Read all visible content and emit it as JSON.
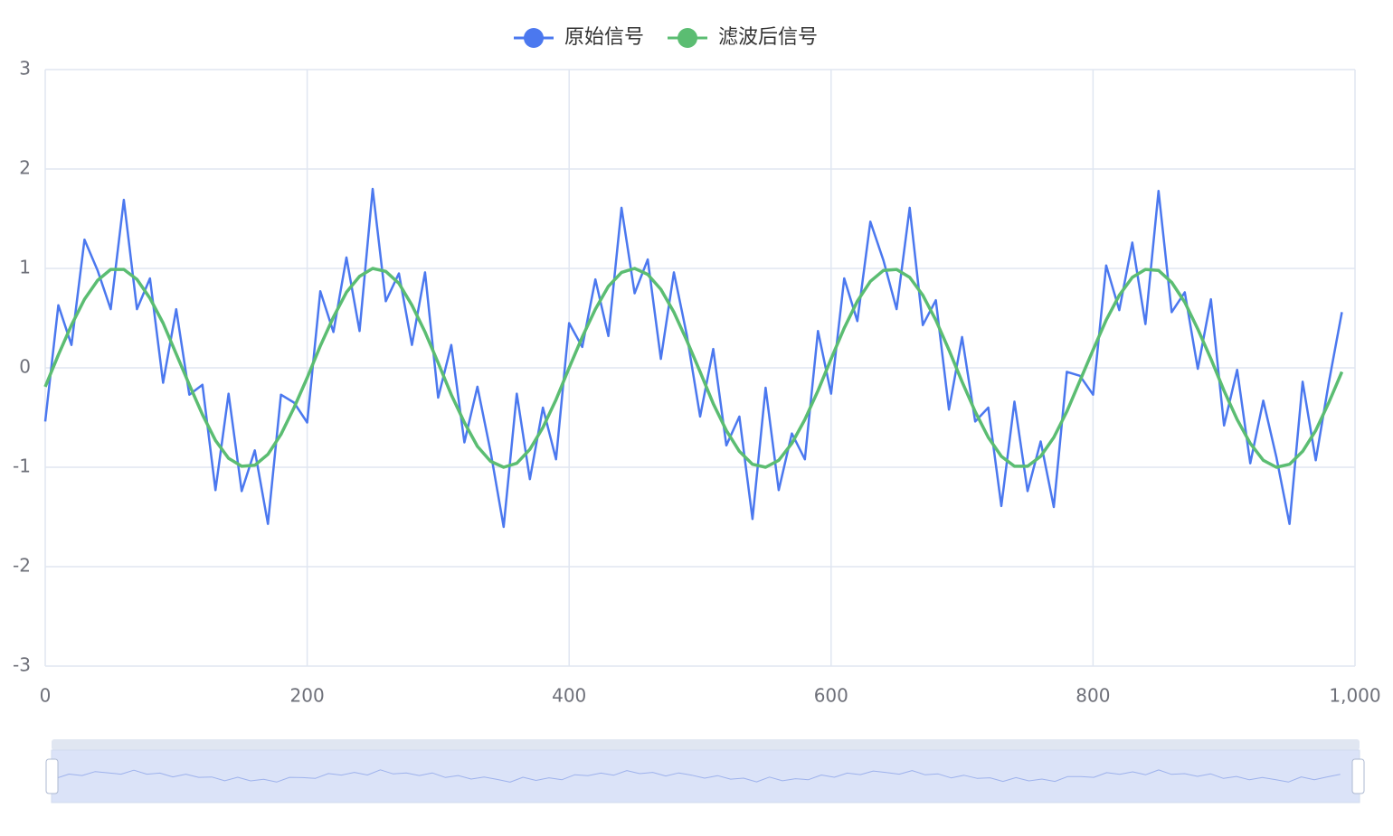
{
  "chart_data": {
    "type": "line",
    "x": [
      0,
      10,
      20,
      30,
      40,
      50,
      60,
      70,
      80,
      90,
      100,
      110,
      120,
      130,
      140,
      150,
      160,
      170,
      180,
      190,
      200,
      210,
      220,
      230,
      240,
      250,
      260,
      270,
      280,
      290,
      300,
      310,
      320,
      330,
      340,
      350,
      360,
      370,
      380,
      390,
      400,
      410,
      420,
      430,
      440,
      450,
      460,
      470,
      480,
      490,
      500,
      510,
      520,
      530,
      540,
      550,
      560,
      570,
      580,
      590,
      600,
      610,
      620,
      630,
      640,
      650,
      660,
      670,
      680,
      690,
      700,
      710,
      720,
      730,
      740,
      750,
      760,
      770,
      780,
      790,
      800,
      810,
      820,
      830,
      840,
      850,
      860,
      870,
      880,
      890,
      900,
      910,
      920,
      930,
      940,
      950,
      960,
      970,
      980,
      990
    ],
    "series": [
      {
        "name": "原始信号",
        "color": "#4b78ef",
        "values": [
          -0.54,
          0.63,
          0.23,
          1.29,
          0.98,
          0.59,
          1.69,
          0.59,
          0.9,
          -0.15,
          0.59,
          -0.27,
          -0.17,
          -1.23,
          -0.26,
          -1.24,
          -0.83,
          -1.57,
          -0.27,
          -0.35,
          -0.55,
          0.77,
          0.36,
          1.11,
          0.37,
          1.8,
          0.67,
          0.95,
          0.23,
          0.96,
          -0.3,
          0.23,
          -0.75,
          -0.19,
          -0.84,
          -1.6,
          -0.26,
          -1.12,
          -0.4,
          -0.92,
          0.45,
          0.21,
          0.89,
          0.32,
          1.61,
          0.75,
          1.09,
          0.09,
          0.96,
          0.32,
          -0.49,
          0.19,
          -0.78,
          -0.49,
          -1.52,
          -0.2,
          -1.23,
          -0.66,
          -0.92,
          0.37,
          -0.26,
          0.9,
          0.47,
          1.47,
          1.08,
          0.59,
          1.61,
          0.43,
          0.68,
          -0.42,
          0.31,
          -0.54,
          -0.4,
          -1.39,
          -0.34,
          -1.24,
          -0.74,
          -1.4,
          -0.04,
          -0.08,
          -0.27,
          1.03,
          0.58,
          1.26,
          0.44,
          1.78,
          0.56,
          0.76,
          -0.01,
          0.69,
          -0.58,
          -0.02,
          -0.96,
          -0.33,
          -0.9,
          -1.57,
          -0.14,
          -0.93,
          -0.15,
          0.56
        ]
      },
      {
        "name": "滤波后信号",
        "color": "#5bbd72",
        "values": [
          -0.19,
          0.13,
          0.43,
          0.69,
          0.88,
          0.99,
          0.99,
          0.89,
          0.7,
          0.45,
          0.14,
          -0.17,
          -0.47,
          -0.73,
          -0.91,
          -0.99,
          -0.98,
          -0.87,
          -0.67,
          -0.4,
          -0.1,
          0.22,
          0.51,
          0.76,
          0.92,
          1.0,
          0.97,
          0.85,
          0.63,
          0.36,
          0.05,
          -0.27,
          -0.55,
          -0.79,
          -0.94,
          -1.0,
          -0.96,
          -0.82,
          -0.6,
          -0.32,
          0.0,
          0.31,
          0.59,
          0.82,
          0.96,
          1.0,
          0.94,
          0.79,
          0.56,
          0.27,
          -0.04,
          -0.36,
          -0.63,
          -0.84,
          -0.97,
          -1.0,
          -0.93,
          -0.76,
          -0.52,
          -0.23,
          0.09,
          0.4,
          0.67,
          0.87,
          0.98,
          0.99,
          0.91,
          0.73,
          0.48,
          0.18,
          -0.14,
          -0.44,
          -0.7,
          -0.89,
          -0.99,
          -0.99,
          -0.89,
          -0.7,
          -0.44,
          -0.13,
          0.18,
          0.48,
          0.73,
          0.91,
          0.99,
          0.98,
          0.86,
          0.66,
          0.39,
          0.09,
          -0.23,
          -0.52,
          -0.76,
          -0.93,
          -1.0,
          -0.97,
          -0.84,
          -0.63,
          -0.35,
          -0.04
        ]
      }
    ],
    "xlim": [
      0,
      1000
    ],
    "xticks": [
      0,
      200,
      400,
      600,
      800,
      {
        "value": 1000,
        "label": "1,000"
      }
    ],
    "ylim": [
      -3,
      3
    ],
    "yticks": [
      -3,
      -2,
      -1,
      0,
      1,
      2,
      3
    ],
    "grid": true
  }
}
